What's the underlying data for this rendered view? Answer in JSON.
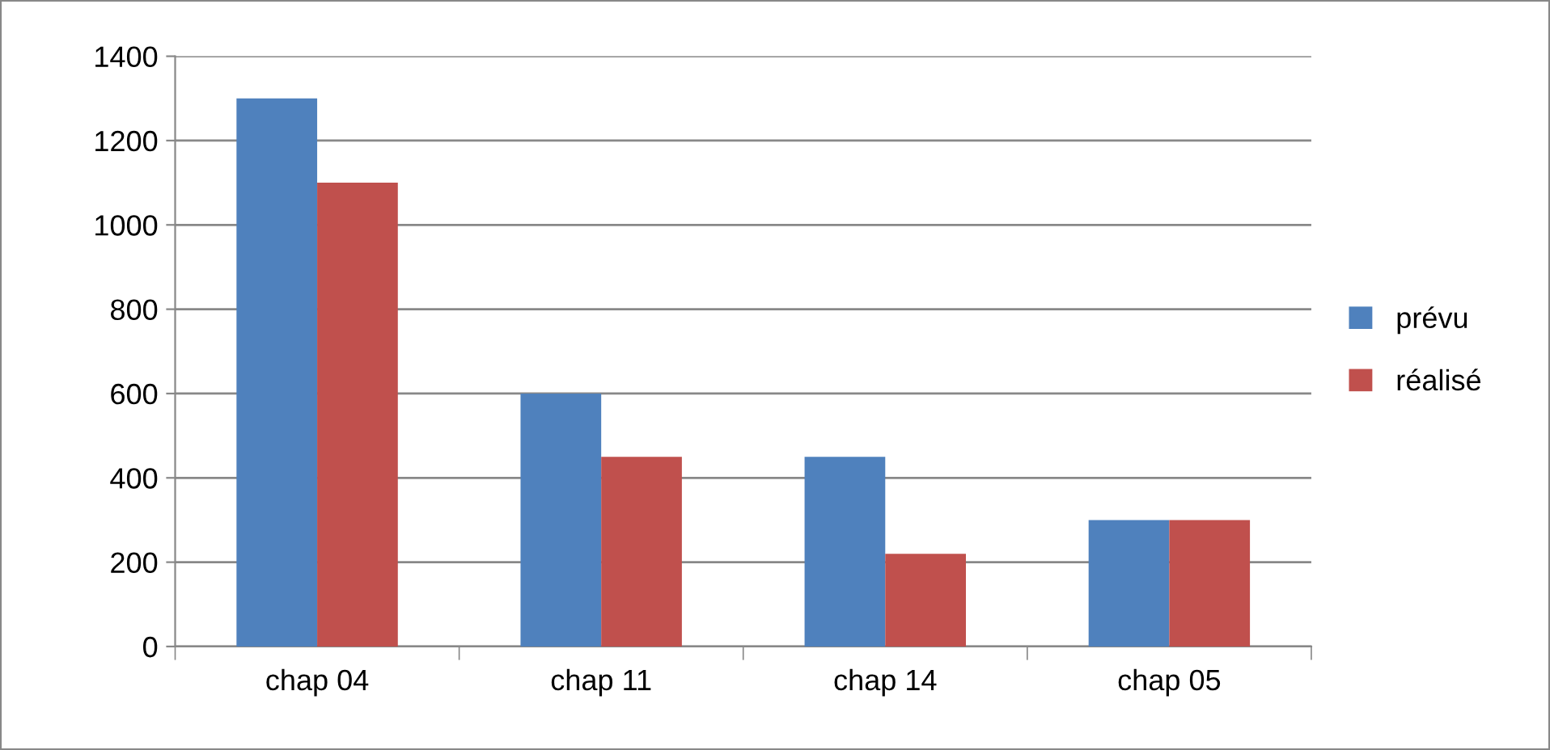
{
  "chart_data": {
    "type": "bar",
    "categories": [
      "chap 04",
      "chap 11",
      "chap 14",
      "chap 05"
    ],
    "series": [
      {
        "name": "prévu",
        "color": "#4f81bd",
        "values": [
          1300,
          600,
          450,
          300
        ]
      },
      {
        "name": "réalisé",
        "color": "#c0504d",
        "values": [
          1100,
          450,
          220,
          300
        ]
      }
    ],
    "ylim": [
      0,
      1400
    ],
    "yticks": [
      0,
      200,
      400,
      600,
      800,
      1000,
      1200,
      1400
    ],
    "grid": "y",
    "legend": "right"
  }
}
